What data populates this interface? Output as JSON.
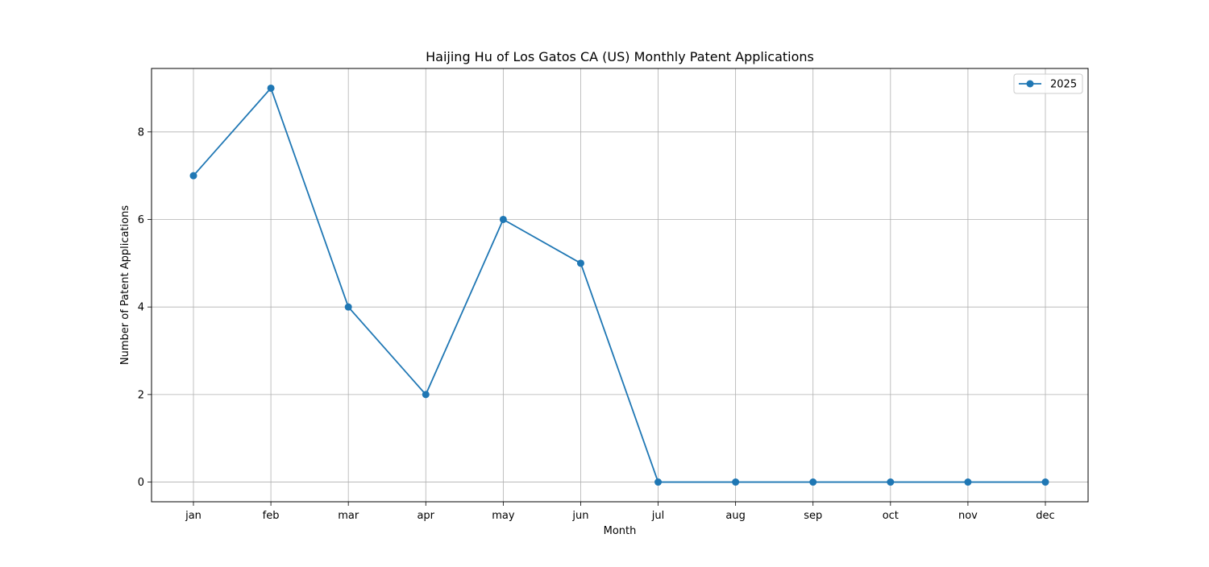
{
  "chart_data": {
    "type": "line",
    "title": "Haijing Hu of Los Gatos CA (US) Monthly Patent Applications",
    "xlabel": "Month",
    "ylabel": "Number of Patent Applications",
    "categories": [
      "jan",
      "feb",
      "mar",
      "apr",
      "may",
      "jun",
      "jul",
      "aug",
      "sep",
      "oct",
      "nov",
      "dec"
    ],
    "series": [
      {
        "name": "2025",
        "values": [
          7,
          9,
          4,
          2,
          6,
          5,
          0,
          0,
          0,
          0,
          0,
          0
        ],
        "color": "#1f77b4",
        "marker": "circle"
      }
    ],
    "yticks": [
      0,
      2,
      4,
      6,
      8
    ],
    "ylim": [
      -0.45,
      9.45
    ],
    "grid": true,
    "legend_position": "top-right"
  }
}
